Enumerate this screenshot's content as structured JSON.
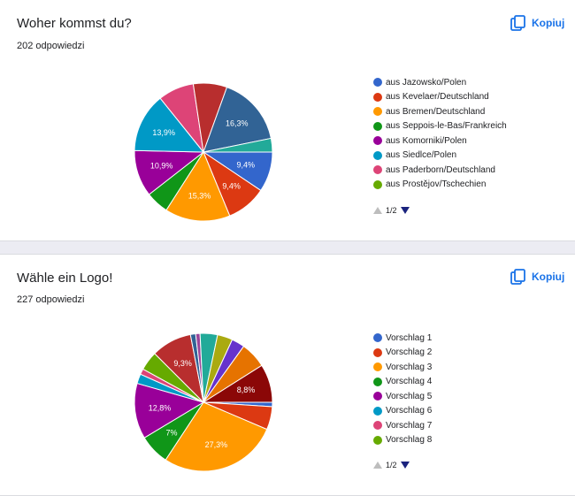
{
  "copy_label": "Kopiuj",
  "pager_text": "1/2",
  "questions": [
    {
      "title": "Woher kommst du?",
      "responses": "202 odpowiedzi",
      "legend": [
        {
          "label": "aus Jazowsko/Polen",
          "color": "#3366cc"
        },
        {
          "label": "aus Kevelaer/Deutschland",
          "color": "#dc3912"
        },
        {
          "label": "aus Bremen/Deutschland",
          "color": "#ff9900"
        },
        {
          "label": "aus Seppois-le-Bas/Frankreich",
          "color": "#109618"
        },
        {
          "label": "aus Komorniki/Polen",
          "color": "#990099"
        },
        {
          "label": "aus Siedlce/Polen",
          "color": "#0099c6"
        },
        {
          "label": "aus Paderborn/Deutschland",
          "color": "#dd4477"
        },
        {
          "label": "aus Prostějov/Tschechien",
          "color": "#66aa00"
        }
      ]
    },
    {
      "title": "Wähle ein Logo!",
      "responses": "227 odpowiedzi",
      "legend": [
        {
          "label": "Vorschlag 1",
          "color": "#3366cc"
        },
        {
          "label": "Vorschlag 2",
          "color": "#dc3912"
        },
        {
          "label": "Vorschlag 3",
          "color": "#ff9900"
        },
        {
          "label": "Vorschlag 4",
          "color": "#109618"
        },
        {
          "label": "Vorschlag 5",
          "color": "#990099"
        },
        {
          "label": "Vorschlag 6",
          "color": "#0099c6"
        },
        {
          "label": "Vorschlag 7",
          "color": "#dd4477"
        },
        {
          "label": "Vorschlag 8",
          "color": "#66aa00"
        }
      ]
    }
  ],
  "chart_data": [
    {
      "type": "pie",
      "slices": [
        {
          "value": 9.4,
          "label": "9,4%",
          "color": "#3366cc"
        },
        {
          "value": 9.4,
          "label": "9,4%",
          "color": "#dc3912"
        },
        {
          "value": 15.3,
          "label": "15,3%",
          "color": "#ff9900"
        },
        {
          "value": 5.4,
          "label": "",
          "color": "#109618"
        },
        {
          "value": 10.9,
          "label": "10,9%",
          "color": "#990099"
        },
        {
          "value": 13.9,
          "label": "13,9%",
          "color": "#0099c6"
        },
        {
          "value": 8.4,
          "label": "",
          "color": "#dd4477"
        },
        {
          "value": 7.9,
          "label": "",
          "color": "#b82e2e"
        },
        {
          "value": 16.3,
          "label": "16,3%",
          "color": "#316395"
        },
        {
          "value": 3.2,
          "label": "",
          "color": "#22aa99"
        }
      ]
    },
    {
      "type": "pie",
      "slices": [
        {
          "value": 1.0,
          "label": "",
          "color": "#3366cc"
        },
        {
          "value": 5.3,
          "label": "",
          "color": "#dc3912"
        },
        {
          "value": 27.3,
          "label": "27,3%",
          "color": "#ff9900"
        },
        {
          "value": 7,
          "label": "7%",
          "color": "#109618"
        },
        {
          "value": 12.8,
          "label": "12,8%",
          "color": "#990099"
        },
        {
          "value": 2.2,
          "label": "",
          "color": "#0099c6"
        },
        {
          "value": 1.3,
          "label": "",
          "color": "#dd4477"
        },
        {
          "value": 4.4,
          "label": "",
          "color": "#66aa00"
        },
        {
          "value": 9.3,
          "label": "9,3%",
          "color": "#b82e2e"
        },
        {
          "value": 1.2,
          "label": "",
          "color": "#316395"
        },
        {
          "value": 1.0,
          "label": "",
          "color": "#994499"
        },
        {
          "value": 4.0,
          "label": "",
          "color": "#22aa99"
        },
        {
          "value": 3.5,
          "label": "",
          "color": "#aaaa11"
        },
        {
          "value": 3.0,
          "label": "",
          "color": "#6633cc"
        },
        {
          "value": 6.0,
          "label": "",
          "color": "#e67300"
        },
        {
          "value": 8.8,
          "label": "8,8%",
          "color": "#8b0707"
        }
      ]
    }
  ]
}
